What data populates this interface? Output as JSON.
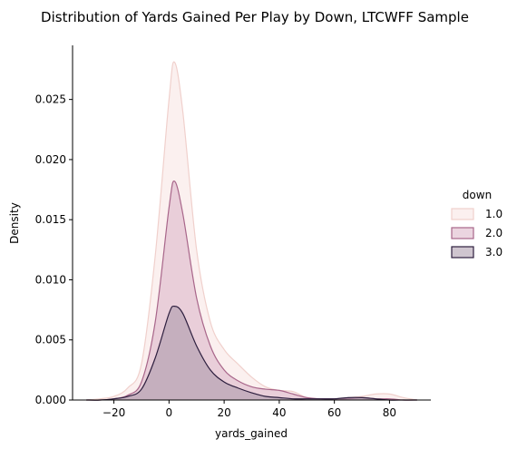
{
  "chart_data": {
    "type": "area",
    "title": "Distribution of Yards Gained Per Play by Down, LTCWFF Sample",
    "xlabel": "yards_gained",
    "ylabel": "Density",
    "xlim": [
      -35,
      95
    ],
    "ylim": [
      0,
      0.0295
    ],
    "xticks": [
      -20,
      0,
      20,
      40,
      60,
      80
    ],
    "xtick_labels": [
      "−20",
      "0",
      "20",
      "40",
      "60",
      "80"
    ],
    "yticks": [
      0,
      0.005,
      0.01,
      0.015,
      0.02,
      0.025
    ],
    "ytick_labels": [
      "0.000",
      "0.005",
      "0.010",
      "0.015",
      "0.020",
      "0.025"
    ],
    "legend": {
      "title": "down",
      "placement": "right"
    },
    "grid": false,
    "x": [
      -30,
      -25,
      -20,
      -15,
      -10,
      -5,
      0,
      2,
      5,
      10,
      15,
      20,
      25,
      30,
      35,
      40,
      45,
      50,
      55,
      60,
      65,
      70,
      75,
      80,
      85,
      90
    ],
    "series": [
      {
        "name": "1.0",
        "color": "#f0d0cc",
        "fill": "#f7e4e1",
        "values": [
          0,
          0.0001,
          0.0003,
          0.001,
          0.003,
          0.012,
          0.025,
          0.0281,
          0.024,
          0.0125,
          0.0065,
          0.0042,
          0.003,
          0.0019,
          0.0011,
          0.0008,
          0.0007,
          0.0002,
          0.0001,
          0.0001,
          0.0002,
          0.0003,
          0.0005,
          0.0005,
          0.0002,
          0.0
        ]
      },
      {
        "name": "2.0",
        "color": "#a8668a",
        "fill": "#dbb3c6",
        "values": [
          0,
          0,
          0.0001,
          0.0004,
          0.0015,
          0.0065,
          0.016,
          0.0182,
          0.0155,
          0.0085,
          0.0045,
          0.0025,
          0.0016,
          0.0011,
          0.0009,
          0.0008,
          0.0005,
          0.0002,
          0.0001,
          0.0001,
          0.0001,
          0.0002,
          0.0001,
          0.0001,
          0,
          0
        ]
      },
      {
        "name": "3.0",
        "color": "#2d1e3e",
        "fill": "#a896a8",
        "values": [
          0,
          0,
          0.0001,
          0.0003,
          0.0009,
          0.0035,
          0.0072,
          0.0078,
          0.0072,
          0.0045,
          0.0025,
          0.0015,
          0.001,
          0.0006,
          0.0003,
          0.0002,
          0.0001,
          0.0001,
          0.0001,
          0.0001,
          0.0002,
          0.0002,
          0.0001,
          0,
          0,
          0
        ]
      }
    ]
  }
}
